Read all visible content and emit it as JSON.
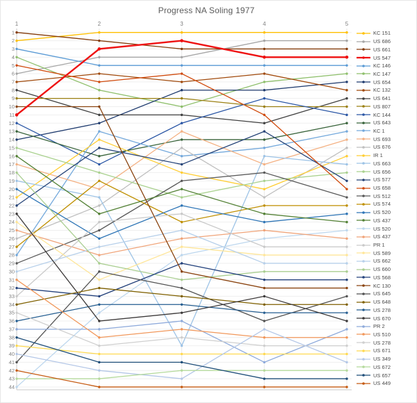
{
  "chart_data": {
    "type": "line",
    "title": "Progress NA Soling 1977",
    "x_axis_position": "top",
    "legend_position": "right",
    "y_axis_inverted": true,
    "highlighted_series": "US 547",
    "x_ticks": [
      1,
      2,
      3,
      4,
      5
    ],
    "y_ticks": [
      1,
      2,
      3,
      4,
      5,
      6,
      7,
      8,
      9,
      10,
      11,
      12,
      13,
      14,
      15,
      16,
      17,
      18,
      19,
      20,
      21,
      22,
      23,
      24,
      25,
      26,
      27,
      28,
      29,
      30,
      31,
      32,
      33,
      34,
      35,
      36,
      37,
      38,
      39,
      40,
      41,
      42,
      43,
      44
    ],
    "series": [
      {
        "name": "KC 151",
        "color": "#FFC000",
        "values": [
          2,
          1,
          1,
          1,
          1
        ]
      },
      {
        "name": "US 686",
        "color": "#A6A6A6",
        "values": [
          6,
          4,
          4,
          2,
          2
        ]
      },
      {
        "name": "US 661",
        "color": "#843C0C",
        "values": [
          1,
          2,
          3,
          3,
          3
        ]
      },
      {
        "name": "US 547",
        "color": "#EE1111",
        "values": [
          11,
          3,
          2,
          4,
          4
        ]
      },
      {
        "name": "KC 146",
        "color": "#5B9BD5",
        "values": [
          3,
          5,
          5,
          5,
          5
        ]
      },
      {
        "name": "KC 147",
        "color": "#8EBF6B",
        "values": [
          4,
          8,
          10,
          7,
          6
        ]
      },
      {
        "name": "US 654",
        "color": "#1F3B6E",
        "values": [
          14,
          12,
          8,
          8,
          7
        ]
      },
      {
        "name": "KC 132",
        "color": "#A0490B",
        "values": [
          7,
          6,
          7,
          6,
          8
        ]
      },
      {
        "name": "US 641",
        "color": "#404040",
        "values": [
          8,
          11,
          11,
          12,
          9
        ]
      },
      {
        "name": "US 807",
        "color": "#9B8013",
        "values": [
          9,
          9,
          9,
          10,
          10
        ]
      },
      {
        "name": "KC 144",
        "color": "#2A56A5",
        "values": [
          12,
          17,
          12,
          9,
          11
        ]
      },
      {
        "name": "US 643",
        "color": "#38633A",
        "values": [
          13,
          16,
          14,
          14,
          12
        ]
      },
      {
        "name": "KC 1",
        "color": "#74A9DC",
        "values": [
          28,
          13,
          16,
          15,
          13
        ]
      },
      {
        "name": "US 693",
        "color": "#F4B183",
        "values": [
          17,
          20,
          13,
          17,
          14
        ]
      },
      {
        "name": "US 676",
        "color": "#BFBFBF",
        "values": [
          26,
          22,
          15,
          21,
          15
        ]
      },
      {
        "name": "IR 1",
        "color": "#FFCD33",
        "values": [
          21,
          14,
          18,
          20,
          16
        ]
      },
      {
        "name": "US 663",
        "color": "#9DC3E6",
        "values": [
          19,
          21,
          39,
          16,
          17
        ]
      },
      {
        "name": "US 656",
        "color": "#A9D18E",
        "values": [
          15,
          18,
          21,
          19,
          18
        ]
      },
      {
        "name": "US 577",
        "color": "#264478",
        "values": [
          22,
          15,
          17,
          13,
          19
        ]
      },
      {
        "name": "US 658",
        "color": "#D04A0C",
        "values": [
          5,
          7,
          6,
          11,
          20
        ]
      },
      {
        "name": "US 512",
        "color": "#595959",
        "values": [
          29,
          25,
          19,
          18,
          21
        ]
      },
      {
        "name": "US 574",
        "color": "#BF8F00",
        "values": [
          27,
          19,
          24,
          22,
          22
        ]
      },
      {
        "name": "US 520",
        "color": "#2E75B6",
        "values": [
          20,
          26,
          22,
          24,
          23
        ]
      },
      {
        "name": "US 437",
        "color": "#538135",
        "values": [
          16,
          23,
          20,
          23,
          24
        ]
      },
      {
        "name": "US 520",
        "color": "#BDD7EE",
        "values": [
          44,
          35,
          28,
          26,
          25
        ]
      },
      {
        "name": "US 437",
        "color": "#F0A479",
        "values": [
          25,
          28,
          26,
          25,
          26
        ]
      },
      {
        "name": "PR 1",
        "color": "#C9C9C9",
        "values": [
          33,
          24,
          23,
          27,
          27
        ]
      },
      {
        "name": "US 589",
        "color": "#FFE699",
        "values": [
          24,
          31,
          27,
          28,
          28
        ]
      },
      {
        "name": "US 662",
        "color": "#B7D0EA",
        "values": [
          30,
          27,
          25,
          29,
          29
        ]
      },
      {
        "name": "US 660",
        "color": "#A9CE90",
        "values": [
          18,
          29,
          31,
          30,
          30
        ]
      },
      {
        "name": "US 568",
        "color": "#24427C",
        "values": [
          32,
          33,
          29,
          31,
          31
        ]
      },
      {
        "name": "KC 130",
        "color": "#8A4410",
        "values": [
          10,
          10,
          30,
          32,
          32
        ]
      },
      {
        "name": "US 645",
        "color": "#525252",
        "values": [
          41,
          30,
          32,
          36,
          33
        ]
      },
      {
        "name": "US 648",
        "color": "#7F6000",
        "values": [
          34,
          32,
          33,
          34,
          34
        ]
      },
      {
        "name": "US 278",
        "color": "#255E91",
        "values": [
          36,
          34,
          34,
          35,
          35
        ]
      },
      {
        "name": "US 670",
        "color": "#3B3838",
        "values": [
          23,
          36,
          35,
          33,
          36
        ]
      },
      {
        "name": "PR 2",
        "color": "#8EAADB",
        "values": [
          37,
          37,
          36,
          41,
          37
        ]
      },
      {
        "name": "US 510",
        "color": "#F1975A",
        "values": [
          31,
          38,
          37,
          38,
          38
        ]
      },
      {
        "name": "US 278",
        "color": "#CFCFCF",
        "values": [
          35,
          39,
          38,
          39,
          39
        ]
      },
      {
        "name": "US 671",
        "color": "#FFD950",
        "values": [
          39,
          40,
          40,
          40,
          40
        ]
      },
      {
        "name": "US 349",
        "color": "#B4C7E7",
        "values": [
          40,
          42,
          43,
          37,
          41
        ]
      },
      {
        "name": "US 672",
        "color": "#B5DA9C",
        "values": [
          43,
          43,
          42,
          42,
          42
        ]
      },
      {
        "name": "US 657",
        "color": "#1F4E79",
        "values": [
          38,
          41,
          41,
          43,
          43
        ]
      },
      {
        "name": "US 449",
        "color": "#C55A11",
        "values": [
          42,
          44,
          44,
          44,
          44
        ]
      }
    ]
  }
}
